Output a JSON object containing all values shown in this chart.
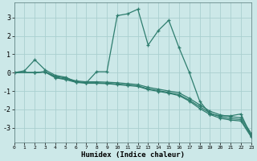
{
  "xlabel": "Humidex (Indice chaleur)",
  "background_color": "#cce8e8",
  "grid_color": "#aacfcf",
  "line_color": "#2e7d6e",
  "series": [
    {
      "x": [
        0,
        1,
        2,
        3,
        4,
        5,
        6,
        7,
        8,
        9,
        10,
        11,
        12,
        13,
        14,
        15,
        16,
        17,
        18,
        19,
        20,
        21,
        22,
        23
      ],
      "y": [
        0.0,
        0.1,
        0.7,
        0.15,
        -0.15,
        -0.25,
        -0.5,
        -0.55,
        0.05,
        0.05,
        3.1,
        3.2,
        3.45,
        1.5,
        2.3,
        2.85,
        1.35,
        0.0,
        -1.55,
        -2.25,
        -2.35,
        -2.35,
        -2.25,
        -3.45
      ]
    },
    {
      "x": [
        0,
        2,
        3,
        4,
        5,
        6,
        7,
        8,
        9,
        10,
        11,
        12,
        13,
        14,
        15,
        16,
        17,
        18,
        19,
        20,
        21,
        22,
        23
      ],
      "y": [
        0.0,
        0.0,
        0.05,
        -0.2,
        -0.3,
        -0.45,
        -0.5,
        -0.5,
        -0.52,
        -0.55,
        -0.6,
        -0.65,
        -0.8,
        -0.9,
        -1.0,
        -1.1,
        -1.4,
        -1.75,
        -2.1,
        -2.3,
        -2.4,
        -2.45,
        -3.3
      ]
    },
    {
      "x": [
        0,
        2,
        3,
        4,
        5,
        6,
        7,
        8,
        9,
        10,
        11,
        12,
        13,
        14,
        15,
        16,
        17,
        18,
        19,
        20,
        21,
        22,
        23
      ],
      "y": [
        0.0,
        0.0,
        0.05,
        -0.25,
        -0.35,
        -0.5,
        -0.55,
        -0.55,
        -0.58,
        -0.62,
        -0.67,
        -0.72,
        -0.88,
        -0.98,
        -1.08,
        -1.2,
        -1.5,
        -1.85,
        -2.2,
        -2.4,
        -2.5,
        -2.55,
        -3.42
      ]
    },
    {
      "x": [
        0,
        2,
        3,
        4,
        5,
        6,
        7,
        8,
        9,
        10,
        11,
        12,
        13,
        14,
        15,
        16,
        17,
        18,
        19,
        20,
        21,
        22,
        23
      ],
      "y": [
        0.0,
        0.0,
        0.03,
        -0.28,
        -0.38,
        -0.53,
        -0.58,
        -0.58,
        -0.6,
        -0.65,
        -0.7,
        -0.75,
        -0.92,
        -1.02,
        -1.12,
        -1.25,
        -1.55,
        -1.95,
        -2.28,
        -2.48,
        -2.58,
        -2.63,
        -3.5
      ]
    }
  ],
  "ylim": [
    -3.8,
    3.8
  ],
  "yticks": [
    -3,
    -2,
    -1,
    0,
    1,
    2,
    3
  ],
  "xlim": [
    0,
    23
  ],
  "xticks": [
    0,
    1,
    2,
    3,
    4,
    5,
    6,
    7,
    8,
    9,
    10,
    11,
    12,
    13,
    14,
    15,
    16,
    17,
    18,
    19,
    20,
    21,
    22,
    23
  ]
}
